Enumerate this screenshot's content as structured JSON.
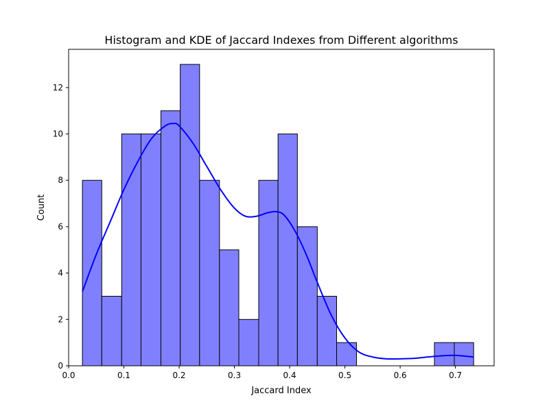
{
  "chart_data": {
    "type": "bar",
    "title": "Histogram and KDE of Jaccard Indexes from Different algorithms",
    "xlabel": "Jaccard Index",
    "ylabel": "Count",
    "xlim": [
      0.0,
      0.77
    ],
    "ylim": [
      0,
      13.65
    ],
    "xticks": [
      0.0,
      0.1,
      0.2,
      0.3,
      0.4,
      0.5,
      0.6,
      0.7
    ],
    "xtick_labels": [
      "0.0",
      "0.1",
      "0.2",
      "0.3",
      "0.4",
      "0.5",
      "0.6",
      "0.7"
    ],
    "yticks": [
      0,
      2,
      4,
      6,
      8,
      10,
      12
    ],
    "ytick_labels": [
      "0",
      "2",
      "4",
      "6",
      "8",
      "10",
      "12"
    ],
    "bin_edges": [
      0.025,
      0.06,
      0.096,
      0.131,
      0.167,
      0.202,
      0.237,
      0.273,
      0.308,
      0.344,
      0.379,
      0.414,
      0.45,
      0.485,
      0.521,
      0.556,
      0.591,
      0.627,
      0.662,
      0.698,
      0.733
    ],
    "counts": [
      8,
      3,
      10,
      10,
      11,
      13,
      8,
      5,
      2,
      8,
      10,
      6,
      3,
      1,
      0,
      0,
      0,
      0,
      1,
      1
    ],
    "kde": {
      "x": [
        0.025,
        0.05,
        0.075,
        0.1,
        0.125,
        0.15,
        0.175,
        0.19,
        0.2,
        0.225,
        0.25,
        0.275,
        0.3,
        0.32,
        0.34,
        0.36,
        0.375,
        0.39,
        0.41,
        0.43,
        0.45,
        0.475,
        0.5,
        0.525,
        0.55,
        0.575,
        0.6,
        0.625,
        0.65,
        0.675,
        0.7,
        0.733
      ],
      "y": [
        3.2,
        4.8,
        6.2,
        7.6,
        8.8,
        9.8,
        10.35,
        10.45,
        10.35,
        9.6,
        8.6,
        7.6,
        6.8,
        6.45,
        6.45,
        6.6,
        6.65,
        6.5,
        5.8,
        4.8,
        3.6,
        2.2,
        1.2,
        0.6,
        0.38,
        0.3,
        0.3,
        0.32,
        0.38,
        0.43,
        0.45,
        0.38
      ]
    },
    "bar_fill": "#8080ff",
    "bar_edge": "#000000",
    "kde_color": "#0000ff",
    "grid": false,
    "legend": false
  }
}
